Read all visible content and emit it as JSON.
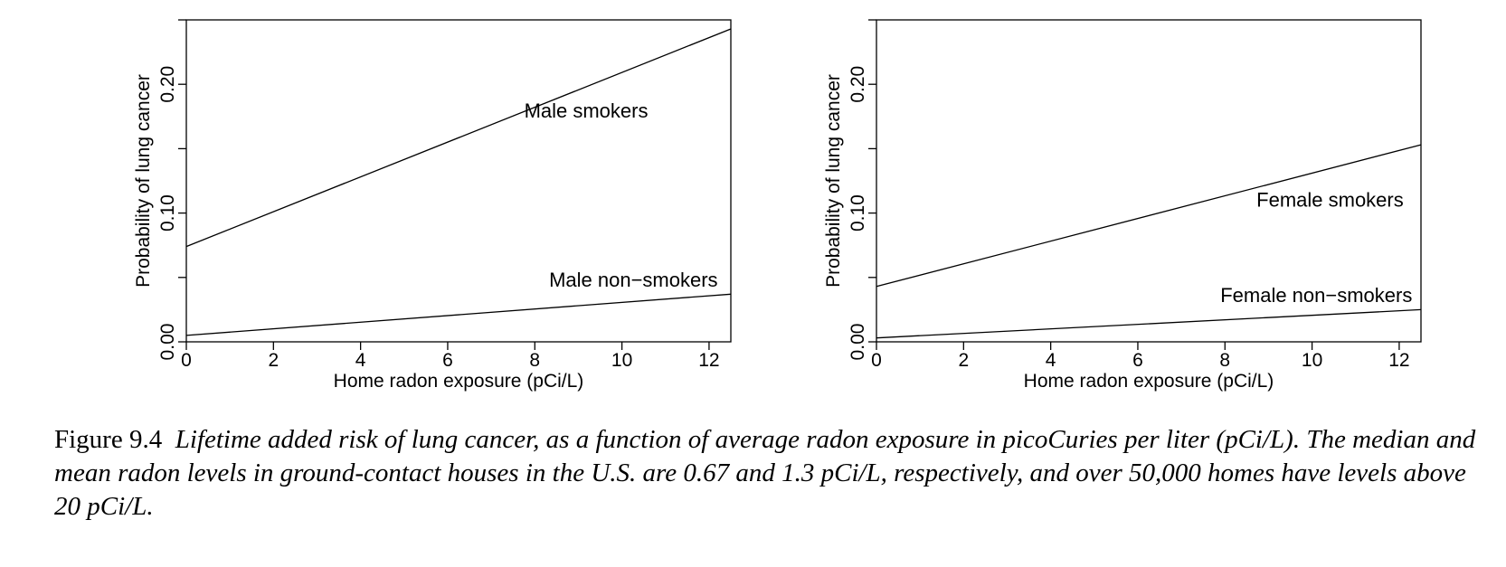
{
  "chart_data": [
    {
      "type": "line",
      "xlabel": "Home radon exposure (pCi/L)",
      "ylabel": "Probability of lung cancer",
      "xlim": [
        0,
        12.5
      ],
      "ylim": [
        0,
        0.25
      ],
      "xticks": [
        0,
        2,
        4,
        6,
        8,
        10,
        12
      ],
      "xtick_labels": [
        "0",
        "2",
        "4",
        "6",
        "8",
        "10",
        "12"
      ],
      "yticks": [
        0,
        0.05,
        0.1,
        0.15,
        0.2,
        0.25
      ],
      "ytick_labels": [
        "0.00",
        "",
        "0.10",
        "",
        "0.20",
        ""
      ],
      "grid": false,
      "series": [
        {
          "name": "Male smokers",
          "x": [
            0,
            12.5
          ],
          "y": [
            0.074,
            0.243
          ]
        },
        {
          "name": "Male non−smokers",
          "x": [
            0,
            12.5
          ],
          "y": [
            0.005,
            0.037
          ]
        }
      ],
      "annotations": [
        {
          "text": "Male smokers",
          "x": 10.6,
          "y": 0.174
        },
        {
          "text": "Male non−smokers",
          "x": 12.2,
          "y": 0.043
        }
      ]
    },
    {
      "type": "line",
      "xlabel": "Home radon exposure (pCi/L)",
      "ylabel": "Probability of lung cancer",
      "xlim": [
        0,
        12.5
      ],
      "ylim": [
        0,
        0.25
      ],
      "xticks": [
        0,
        2,
        4,
        6,
        8,
        10,
        12
      ],
      "xtick_labels": [
        "0",
        "2",
        "4",
        "6",
        "8",
        "10",
        "12"
      ],
      "yticks": [
        0,
        0.05,
        0.1,
        0.15,
        0.2,
        0.25
      ],
      "ytick_labels": [
        "0.00",
        "",
        "0.10",
        "",
        "0.20",
        ""
      ],
      "grid": false,
      "series": [
        {
          "name": "Female smokers",
          "x": [
            0,
            12.5
          ],
          "y": [
            0.043,
            0.153
          ]
        },
        {
          "name": "Female non−smokers",
          "x": [
            0,
            12.5
          ],
          "y": [
            0.003,
            0.025
          ]
        }
      ],
      "annotations": [
        {
          "text": "Female smokers",
          "x": 12.1,
          "y": 0.105
        },
        {
          "text": "Female non−smokers",
          "x": 12.3,
          "y": 0.031
        }
      ]
    }
  ],
  "caption": {
    "lead": "Figure 9.4",
    "text": "Lifetime added risk of lung cancer, as a function of average radon exposure in picoCuries per liter (pCi/L). The median and mean radon levels in ground-contact houses in the U.S. are 0.67 and 1.3 pCi/L, respectively, and over 50,000 homes have levels above 20 pCi/L."
  }
}
